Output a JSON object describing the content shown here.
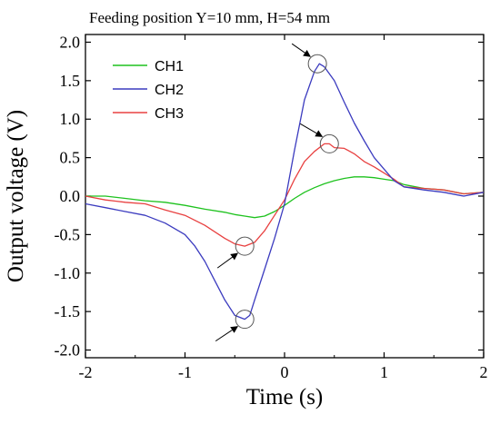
{
  "chart_data": {
    "type": "line",
    "title": "Feeding position Y=10 mm, H=54 mm",
    "xlabel": "Time (s)",
    "ylabel": "Output voltage (V)",
    "xlim": [
      -2,
      2
    ],
    "ylim": [
      -2.1,
      2.1
    ],
    "xticks": [
      -2,
      -1,
      0,
      1,
      2
    ],
    "xtick_labels": [
      "-2",
      "-1",
      "0",
      "1",
      "2"
    ],
    "yticks": [
      -2.0,
      -1.5,
      -1.0,
      -0.5,
      0.0,
      0.5,
      1.0,
      1.5,
      2.0
    ],
    "ytick_labels": [
      "-2.0",
      "-1.5",
      "-1.0",
      "-0.5",
      "0.0",
      "0.5",
      "1.0",
      "1.5",
      "2.0"
    ],
    "grid": false,
    "legend_position": "top-left",
    "series": [
      {
        "name": "CH1",
        "color": "#1ec21e",
        "x": [
          -2.0,
          -1.8,
          -1.6,
          -1.4,
          -1.2,
          -1.0,
          -0.8,
          -0.6,
          -0.5,
          -0.4,
          -0.3,
          -0.2,
          -0.1,
          0.0,
          0.1,
          0.2,
          0.3,
          0.4,
          0.5,
          0.6,
          0.7,
          0.8,
          0.9,
          1.0,
          1.1,
          1.2,
          1.4,
          1.6,
          1.8,
          2.0
        ],
        "y": [
          0.0,
          0.0,
          -0.03,
          -0.06,
          -0.08,
          -0.12,
          -0.17,
          -0.21,
          -0.24,
          -0.26,
          -0.28,
          -0.26,
          -0.2,
          -0.12,
          -0.03,
          0.05,
          0.11,
          0.16,
          0.2,
          0.23,
          0.25,
          0.25,
          0.24,
          0.22,
          0.2,
          0.15,
          0.1,
          0.08,
          0.03,
          0.05
        ]
      },
      {
        "name": "CH2",
        "color": "#3b3bbf",
        "x": [
          -2.0,
          -1.8,
          -1.6,
          -1.4,
          -1.2,
          -1.0,
          -0.9,
          -0.8,
          -0.7,
          -0.6,
          -0.5,
          -0.4,
          -0.35,
          -0.3,
          -0.2,
          -0.1,
          0.0,
          0.1,
          0.2,
          0.3,
          0.35,
          0.4,
          0.5,
          0.6,
          0.7,
          0.8,
          0.9,
          1.0,
          1.1,
          1.2,
          1.4,
          1.6,
          1.8,
          2.0
        ],
        "y": [
          -0.1,
          -0.15,
          -0.2,
          -0.25,
          -0.35,
          -0.5,
          -0.65,
          -0.85,
          -1.1,
          -1.35,
          -1.55,
          -1.6,
          -1.55,
          -1.35,
          -0.95,
          -0.55,
          -0.1,
          0.6,
          1.25,
          1.62,
          1.72,
          1.68,
          1.5,
          1.22,
          0.95,
          0.72,
          0.5,
          0.35,
          0.2,
          0.12,
          0.08,
          0.05,
          0.0,
          0.05
        ]
      },
      {
        "name": "CH3",
        "color": "#e84040",
        "x": [
          -2.0,
          -1.8,
          -1.6,
          -1.4,
          -1.2,
          -1.0,
          -0.8,
          -0.6,
          -0.5,
          -0.4,
          -0.3,
          -0.2,
          -0.1,
          0.0,
          0.1,
          0.2,
          0.3,
          0.4,
          0.45,
          0.5,
          0.6,
          0.7,
          0.8,
          0.9,
          1.0,
          1.1,
          1.2,
          1.4,
          1.6,
          1.8,
          2.0
        ],
        "y": [
          0.0,
          -0.05,
          -0.08,
          -0.1,
          -0.18,
          -0.25,
          -0.38,
          -0.55,
          -0.62,
          -0.65,
          -0.6,
          -0.45,
          -0.25,
          -0.05,
          0.22,
          0.45,
          0.58,
          0.68,
          0.68,
          0.63,
          0.62,
          0.55,
          0.45,
          0.38,
          0.3,
          0.22,
          0.12,
          0.1,
          0.08,
          0.03,
          0.05
        ]
      }
    ],
    "annotations": [
      {
        "target": "CH2 peak",
        "x": 0.33,
        "y": 1.72
      },
      {
        "target": "CH3 peak",
        "x": 0.45,
        "y": 0.68
      },
      {
        "target": "CH3 valley",
        "x": -0.4,
        "y": -0.65
      },
      {
        "target": "CH2 valley",
        "x": -0.4,
        "y": -1.6
      }
    ]
  }
}
